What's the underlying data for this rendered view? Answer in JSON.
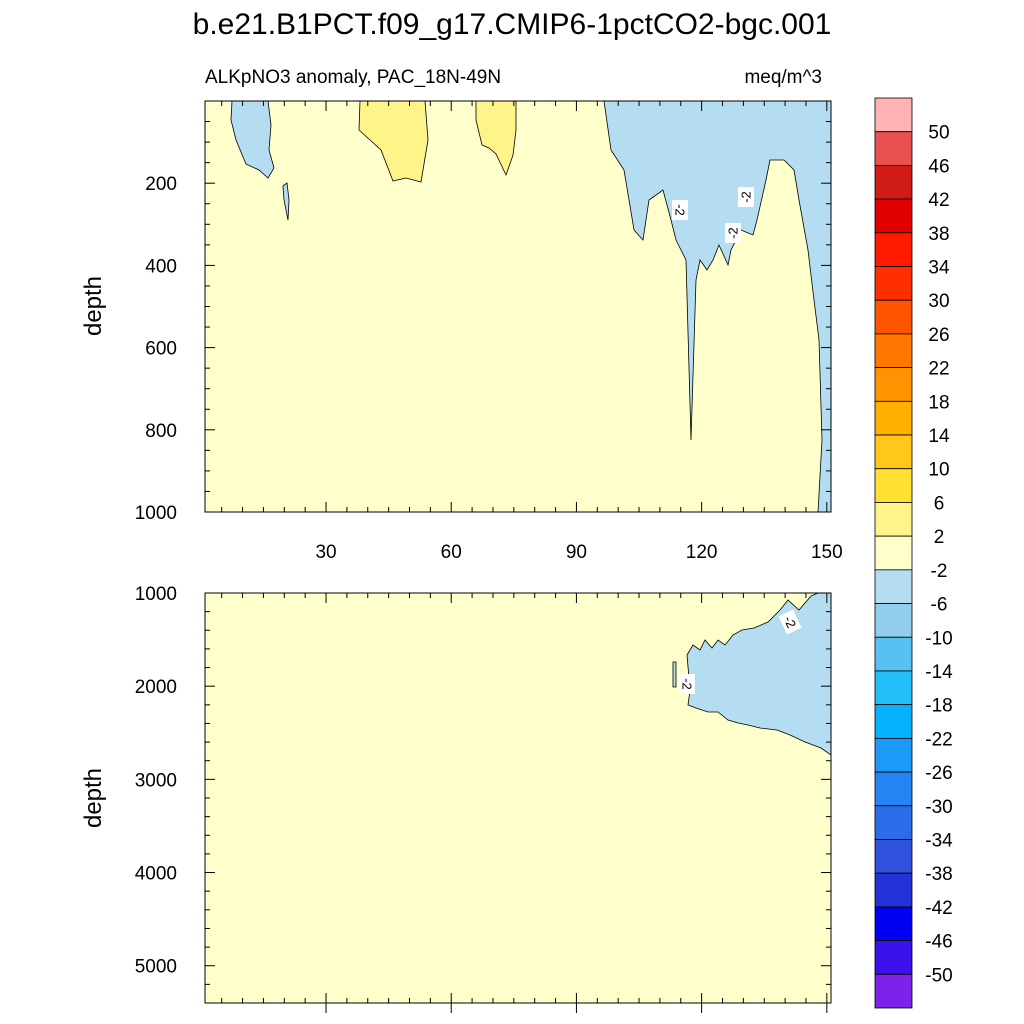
{
  "chart_data": {
    "type": "heatmap",
    "title": "b.e21.B1PCT.f09_g17.CMIP6-1pctCO2-bgc.001",
    "subtitle_left": "ALKpNO3 anomaly, PAC_18N-49N",
    "subtitle_right": "meq/m^3",
    "ylabel": "depth",
    "colorbar": {
      "labels": [
        "50",
        "46",
        "42",
        "38",
        "34",
        "30",
        "26",
        "22",
        "18",
        "14",
        "10",
        "6",
        "2",
        "-2",
        "-6",
        "-10",
        "-14",
        "-18",
        "-22",
        "-26",
        "-30",
        "-34",
        "-38",
        "-42",
        "-46",
        "-50"
      ],
      "colors": [
        "#ffb3b3",
        "#e8514f",
        "#d11c16",
        "#e00000",
        "#ff1a00",
        "#ff2f00",
        "#ff5500",
        "#ff7700",
        "#ff9400",
        "#ffaf00",
        "#ffc81a",
        "#ffe033",
        "#fff48a",
        "#ffffcc",
        "#b4ddf2",
        "#92cdee",
        "#57c2f2",
        "#23bff9",
        "#05b2fd",
        "#1d9af8",
        "#2584f4",
        "#2b6de8",
        "#3053dd",
        "#2433d8",
        "#0000f5",
        "#3b12ea",
        "#7c22ea"
      ]
    },
    "panels": [
      {
        "name": "upper",
        "xlim": [
          1,
          151
        ],
        "ylim": [
          0,
          1000
        ],
        "y_inverted": true,
        "x_ticks": [
          30,
          60,
          90,
          120,
          150
        ],
        "y_ticks": [
          200,
          400,
          600,
          800,
          1000
        ],
        "background_level": "-2 to 2",
        "contour_labels": [
          "-2",
          "-2",
          "-2"
        ],
        "regions": [
          {
            "level": "-6 to -2",
            "x": [
              8,
              18
            ],
            "depth_top": 0,
            "depth_bottom": 290
          },
          {
            "level": "2 to 6",
            "x": [
              39,
              51
            ],
            "depth_top": 0,
            "depth_bottom": 195
          },
          {
            "level": "2 to 6",
            "x": [
              66,
              75
            ],
            "depth_top": 0,
            "depth_bottom": 170
          },
          {
            "level": "-6 to -2",
            "x": [
              99,
              151
            ],
            "depth_top": 0,
            "depth_bottom": 1000
          }
        ]
      },
      {
        "name": "lower",
        "xlim": [
          1,
          151
        ],
        "ylim": [
          1000,
          5400
        ],
        "y_inverted": true,
        "x_ticks": [
          30,
          60,
          90,
          120,
          150
        ],
        "y_ticks": [
          1000,
          2000,
          3000,
          4000,
          5000
        ],
        "background_level": "-2 to 2",
        "contour_labels": [
          "-2",
          "-2"
        ],
        "regions": [
          {
            "level": "-6 to -2",
            "x": [
              118,
              151
            ],
            "depth_top": 1000,
            "depth_bottom": 2750
          }
        ]
      }
    ]
  }
}
